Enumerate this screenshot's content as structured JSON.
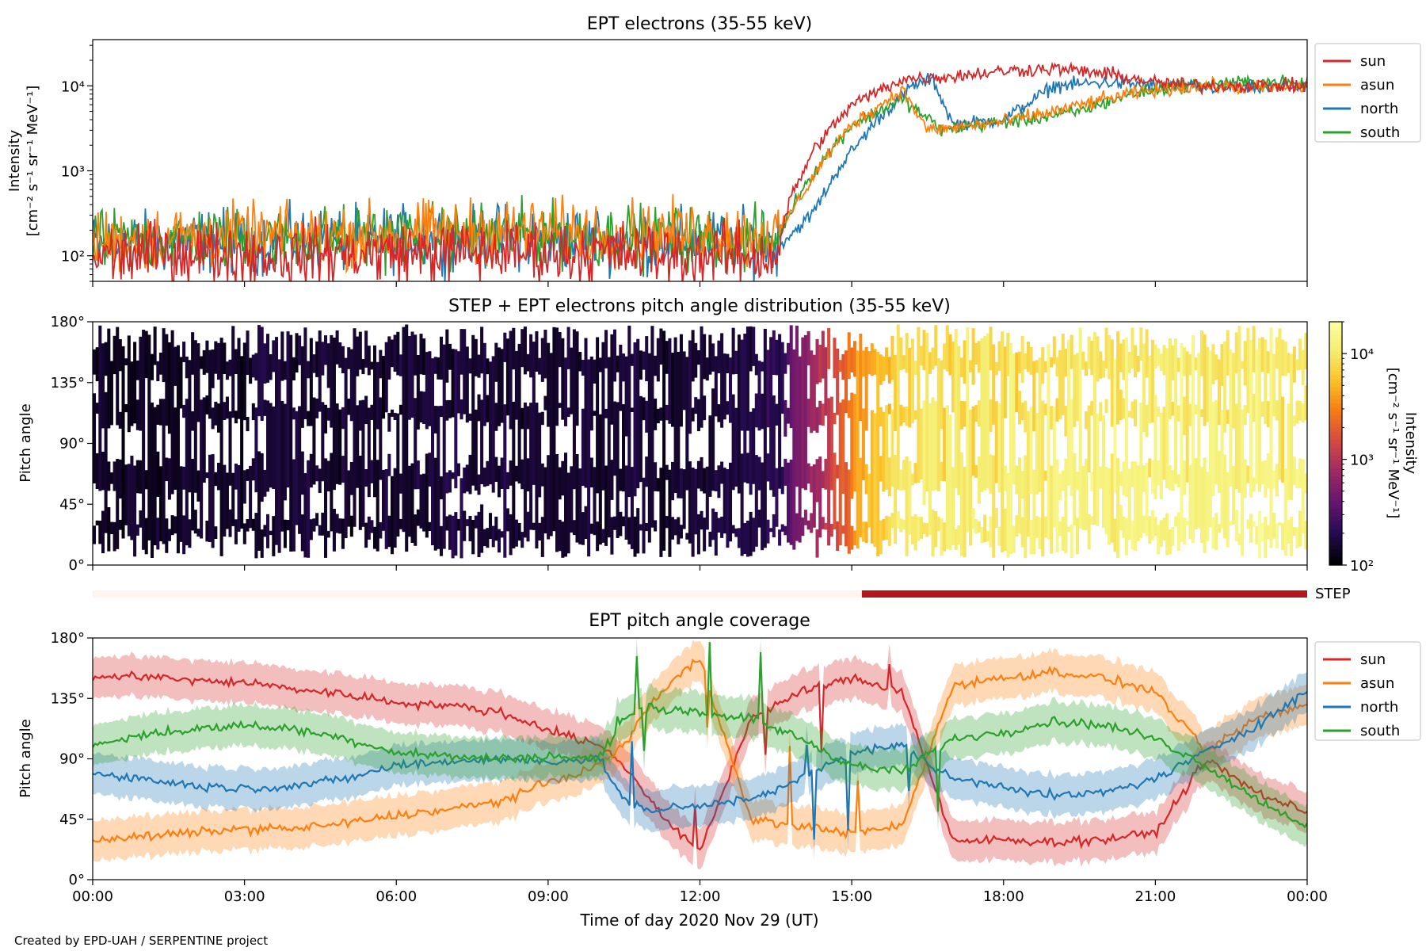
{
  "figure": {
    "xlabel": "Time of day 2020 Nov 29 (UT)",
    "x_ticks": [
      "00:00",
      "03:00",
      "06:00",
      "09:00",
      "12:00",
      "15:00",
      "18:00",
      "21:00",
      "00:00"
    ],
    "footer": "Created by EPD-UAH / SERPENTINE project"
  },
  "colors": {
    "sun": "#d62728",
    "asun": "#ff7f0e",
    "north": "#1f77b4",
    "south": "#2ca02c",
    "step_on": "#b2181b",
    "step_off": "#fff5f0"
  },
  "chart_data": [
    {
      "type": "line",
      "title": "EPT electrons (35-55 keV)",
      "ylabel": [
        "Intensity",
        "[cm⁻² s⁻¹ sr⁻¹ MeV⁻¹]"
      ],
      "yscale": "log",
      "ylim": [
        50,
        35000
      ],
      "xlim_hours": [
        0,
        24
      ],
      "y_ticks": [
        {
          "value": 100,
          "label": "10²"
        },
        {
          "value": 1000,
          "label": "10³"
        },
        {
          "value": 10000,
          "label": "10⁴"
        }
      ],
      "legend": {
        "position": "outside-right-top",
        "entries": [
          "sun",
          "asun",
          "north",
          "south"
        ]
      },
      "series": [
        {
          "name": "sun",
          "hours": [
            0,
            2,
            4,
            6,
            8,
            10,
            12,
            13.5,
            13.8,
            14.3,
            15,
            16,
            17,
            18,
            19,
            20,
            21,
            22,
            23,
            24
          ],
          "values": [
            100,
            110,
            100,
            110,
            110,
            110,
            100,
            100,
            500,
            2000,
            6000,
            12000,
            13000,
            15000,
            16000,
            14000,
            11000,
            10000,
            10000,
            10000
          ]
        },
        {
          "name": "asun",
          "hours": [
            0,
            2,
            4,
            6,
            8,
            10,
            12,
            13.5,
            14,
            14.5,
            15,
            16,
            16.5,
            17,
            18,
            19,
            20,
            21,
            22,
            23,
            24
          ],
          "values": [
            150,
            170,
            170,
            180,
            200,
            190,
            180,
            170,
            500,
            1500,
            3500,
            9000,
            3000,
            3200,
            3800,
            5000,
            7000,
            9000,
            10000,
            9500,
            9500
          ]
        },
        {
          "name": "north",
          "hours": [
            0,
            2,
            4,
            6,
            8,
            10,
            12,
            13.6,
            14.2,
            14.8,
            15.5,
            16.2,
            16.6,
            17,
            18,
            19,
            20,
            21,
            22,
            23,
            24
          ],
          "values": [
            130,
            150,
            150,
            160,
            170,
            160,
            150,
            140,
            300,
            1200,
            4000,
            10000,
            12000,
            3500,
            4000,
            10000,
            11000,
            10000,
            9500,
            9500,
            10000
          ]
        },
        {
          "name": "south",
          "hours": [
            0,
            2,
            4,
            6,
            8,
            10,
            12,
            13.5,
            14,
            14.5,
            15,
            16,
            16.8,
            17.5,
            18.5,
            19.5,
            20.5,
            21.5,
            22.5,
            23.5,
            24
          ],
          "values": [
            140,
            160,
            160,
            170,
            180,
            170,
            160,
            150,
            600,
            1500,
            3500,
            7000,
            3000,
            3500,
            4000,
            5000,
            8000,
            10000,
            11000,
            11000,
            10000
          ]
        }
      ]
    },
    {
      "type": "heatmap",
      "title": "STEP + EPT electrons pitch angle distribution (35-55 keV)",
      "ylabel": "Pitch angle",
      "ylim": [
        0,
        180
      ],
      "y_ticks": [
        "0°",
        "45°",
        "90°",
        "135°",
        "180°"
      ],
      "colormap": "inferno",
      "colorbar": {
        "scale": "log",
        "range": [
          100,
          20000
        ],
        "ticks": [
          {
            "value": 100,
            "label": "10²"
          },
          {
            "value": 1000,
            "label": "10³"
          },
          {
            "value": 10000,
            "label": "10⁴"
          }
        ],
        "label": [
          "Intensity",
          "[cm⁻² s⁻¹ sr⁻¹ MeV⁻¹]"
        ]
      },
      "intensity_profile": {
        "hours": [
          0,
          6,
          12,
          13.5,
          14,
          14.8,
          15.3,
          16,
          17,
          19,
          21,
          24
        ],
        "values": [
          130,
          150,
          150,
          200,
          500,
          2000,
          4000,
          7000,
          7000,
          8000,
          9000,
          9000
        ]
      }
    },
    {
      "type": "bar",
      "name": "STEP",
      "label": "STEP",
      "segments": [
        {
          "start_hour": 0,
          "end_hour": 15.2,
          "active": false
        },
        {
          "start_hour": 15.2,
          "end_hour": 24,
          "active": true
        }
      ]
    },
    {
      "type": "area",
      "title": "EPT pitch angle coverage",
      "ylabel": "Pitch angle",
      "ylim": [
        0,
        180
      ],
      "y_ticks": [
        "0°",
        "45°",
        "90°",
        "135°",
        "180°"
      ],
      "legend": {
        "position": "outside-right-top",
        "entries": [
          "sun",
          "asun",
          "north",
          "south"
        ]
      },
      "band_halfwidth_deg": 15,
      "series": [
        {
          "name": "sun",
          "hours": [
            0,
            1,
            2,
            3,
            4,
            5,
            6,
            7,
            8,
            9,
            10,
            10.5,
            11,
            11.5,
            12,
            13,
            14,
            15,
            16,
            17,
            18,
            19,
            20,
            21,
            22,
            23,
            24
          ],
          "values": [
            150,
            152,
            148,
            147,
            142,
            138,
            132,
            130,
            125,
            112,
            100,
            85,
            60,
            38,
            20,
            120,
            140,
            150,
            140,
            28,
            30,
            28,
            30,
            35,
            90,
            65,
            50
          ]
        },
        {
          "name": "asun",
          "hours": [
            0,
            1,
            2,
            3,
            4,
            5,
            6,
            7,
            8,
            9,
            10,
            10.5,
            11,
            11.5,
            12,
            13,
            14,
            15,
            16,
            17,
            18,
            19,
            20,
            21,
            22,
            23,
            24
          ],
          "values": [
            30,
            32,
            35,
            38,
            38,
            42,
            48,
            52,
            58,
            72,
            85,
            100,
            130,
            150,
            165,
            45,
            40,
            35,
            40,
            145,
            150,
            155,
            150,
            140,
            95,
            120,
            130
          ]
        },
        {
          "name": "north",
          "hours": [
            0,
            1,
            2,
            3,
            4,
            5,
            6,
            7,
            8,
            9,
            10,
            10.5,
            11,
            11.5,
            12,
            13,
            14,
            15,
            16,
            17,
            18,
            19,
            20,
            21,
            22,
            23,
            24
          ],
          "values": [
            80,
            75,
            70,
            68,
            70,
            75,
            85,
            88,
            90,
            88,
            90,
            60,
            50,
            55,
            55,
            60,
            75,
            95,
            100,
            75,
            70,
            62,
            65,
            75,
            95,
            115,
            140
          ]
        },
        {
          "name": "south",
          "hours": [
            0,
            1,
            2,
            3,
            4,
            5,
            6,
            7,
            8,
            9,
            10,
            10.5,
            11,
            11.5,
            12,
            13,
            14,
            15,
            16,
            17,
            18,
            19,
            20,
            21,
            22,
            23,
            24
          ],
          "values": [
            100,
            108,
            112,
            115,
            112,
            105,
            95,
            92,
            90,
            92,
            90,
            120,
            130,
            125,
            125,
            120,
            105,
            85,
            80,
            105,
            110,
            118,
            115,
            105,
            85,
            60,
            40
          ]
        }
      ]
    }
  ]
}
